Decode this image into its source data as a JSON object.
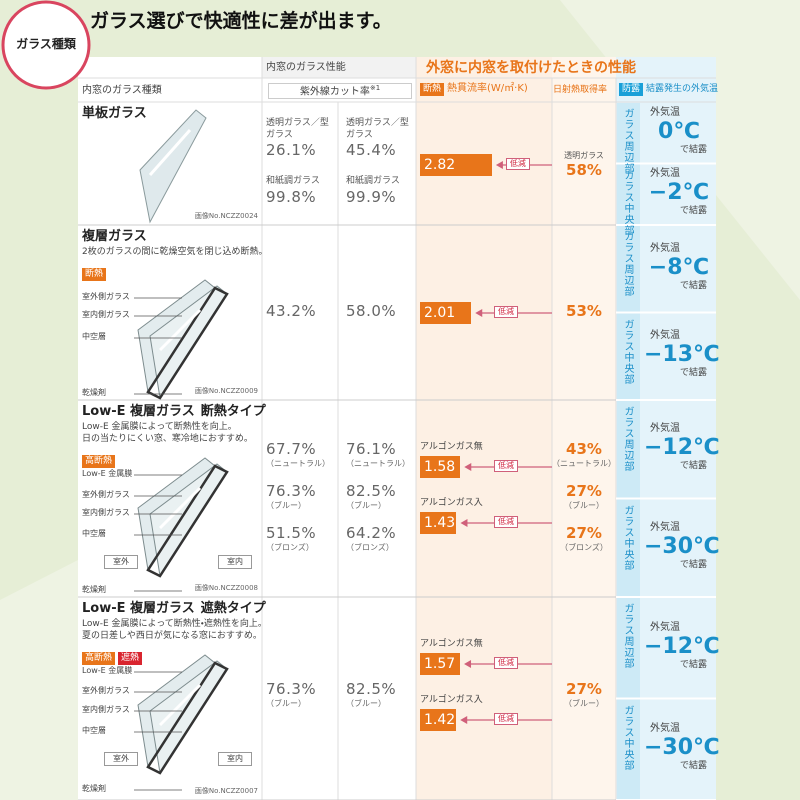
{
  "badge": "ガラス種類",
  "title": "ガラス選びで快適性に差が出ます。",
  "header": {
    "inner_perf": "内窓のガラス性能",
    "outer_perf": "外窓に内窓を取付けたときの性能",
    "glass_type": "内窓のガラス種類",
    "uv_cut": "紫外線カット率",
    "uv_note": "※1",
    "insulation_badge": "断熱",
    "heat_flow": "熱貫流率(W/㎡·K)",
    "solar": "日射熱取得率",
    "dew_badge": "防露",
    "dew": "結露発生の外気温"
  },
  "rows": [
    {
      "name": "単板ガラス",
      "image_no": "画像No.NCZZ0024",
      "uv": [
        [
          {
            "label": "透明ガラス／型ガラス",
            "value": "26.1%"
          },
          {
            "label": "和紙調ガラス",
            "value": "99.8%"
          }
        ],
        [
          {
            "label": "透明ガラス／型ガラス",
            "value": "45.4%"
          },
          {
            "label": "和紙調ガラス",
            "value": "99.9%"
          }
        ]
      ],
      "heat": [
        {
          "value": 2.82,
          "reduce": "低減"
        }
      ],
      "solar": [
        {
          "label": "透明ガラス",
          "value": "58%"
        }
      ],
      "dew": [
        {
          "area": "ガラス周辺部",
          "temp_label": "外気温",
          "temp": "0℃",
          "suffix": "で結露"
        },
        {
          "area": "ガラス中央部",
          "temp_label": "外気温",
          "temp": "−2℃",
          "suffix": "で結露"
        }
      ]
    },
    {
      "name": "複層ガラス",
      "desc": [
        "2枚のガラスの間に乾燥空気を閉じ込め断熱。"
      ],
      "badges": [
        "断熱"
      ],
      "parts": [
        "室外側ガラス",
        "室内側ガラス",
        "中空層",
        "乾燥剤"
      ],
      "image_no": "画像No.NCZZ0009",
      "uv": [
        [
          {
            "value": "43.2%"
          }
        ],
        [
          {
            "value": "58.0%"
          }
        ]
      ],
      "heat": [
        {
          "value": 2.01,
          "reduce": "低減"
        }
      ],
      "solar": [
        {
          "value": "53%"
        }
      ],
      "dew": [
        {
          "area": "ガラス周辺部",
          "temp_label": "外気温",
          "temp": "−8℃",
          "suffix": "で結露"
        },
        {
          "area": "ガラス中央部",
          "temp_label": "外気温",
          "temp": "−13℃",
          "suffix": "で結露"
        }
      ]
    },
    {
      "name": "Low-E 複層ガラス",
      "subtype": "断熱タイプ",
      "desc": [
        "Low-E 金属膜によって断熱性を向上。",
        "日の当たりにくい窓、寒冷地におすすめ。"
      ],
      "badges": [
        "高断熱"
      ],
      "parts": [
        "Low-E 金属膜",
        "室外側ガラス",
        "室内側ガラス",
        "中空層",
        "乾燥剤"
      ],
      "outside": "室外",
      "inside": "室内",
      "image_no": "画像No.NCZZ0008",
      "uv": [
        [
          {
            "value": "67.7%",
            "note": "（ニュートラル）"
          },
          {
            "value": "76.3%",
            "note": "（ブルー）"
          },
          {
            "value": "51.5%",
            "note": "（ブロンズ）"
          }
        ],
        [
          {
            "value": "76.1%",
            "note": "（ニュートラル）"
          },
          {
            "value": "82.5%",
            "note": "（ブルー）"
          },
          {
            "value": "64.2%",
            "note": "（ブロンズ）"
          }
        ]
      ],
      "heat": [
        {
          "label": "アルゴンガス無",
          "value": 1.58,
          "reduce": "低減"
        },
        {
          "label": "アルゴンガス入",
          "value": 1.43,
          "reduce": "低減"
        }
      ],
      "solar": [
        {
          "value": "43%",
          "note": "（ニュートラル）"
        },
        {
          "value": "27%",
          "note": "（ブルー）"
        },
        {
          "value": "27%",
          "note": "（ブロンズ）"
        }
      ],
      "dew": [
        {
          "area": "ガラス周辺部",
          "temp_label": "外気温",
          "temp": "−12℃",
          "suffix": "で結露"
        },
        {
          "area": "ガラス中央部",
          "temp_label": "外気温",
          "temp": "−30℃",
          "suffix": "で結露"
        }
      ]
    },
    {
      "name": "Low-E 複層ガラス",
      "subtype": "遮熱タイプ",
      "desc": [
        "Low-E 金属膜によって断熱性・遮熱性を向上。",
        "夏の日差しや西日が気になる窓におすすめ。"
      ],
      "badges": [
        "高断熱",
        "遮熱"
      ],
      "parts": [
        "Low-E 金属膜",
        "室外側ガラス",
        "室内側ガラス",
        "中空層",
        "乾燥剤"
      ],
      "outside": "室外",
      "inside": "室内",
      "image_no": "画像No.NCZZ0007",
      "uv": [
        [
          {
            "value": "76.3%",
            "note": "（ブルー）"
          }
        ],
        [
          {
            "value": "82.5%",
            "note": "（ブルー）"
          }
        ]
      ],
      "heat": [
        {
          "label": "アルゴンガス無",
          "value": 1.57,
          "reduce": "低減"
        },
        {
          "label": "アルゴンガス入",
          "value": 1.42,
          "reduce": "低減"
        }
      ],
      "solar": [
        {
          "value": "27%",
          "note": "（ブルー）"
        }
      ],
      "dew": [
        {
          "area": "ガラス周辺部",
          "temp_label": "外気温",
          "temp": "−12℃",
          "suffix": "で結露"
        },
        {
          "area": "ガラス中央部",
          "temp_label": "外気温",
          "temp": "−30℃",
          "suffix": "で結露"
        }
      ]
    }
  ]
}
